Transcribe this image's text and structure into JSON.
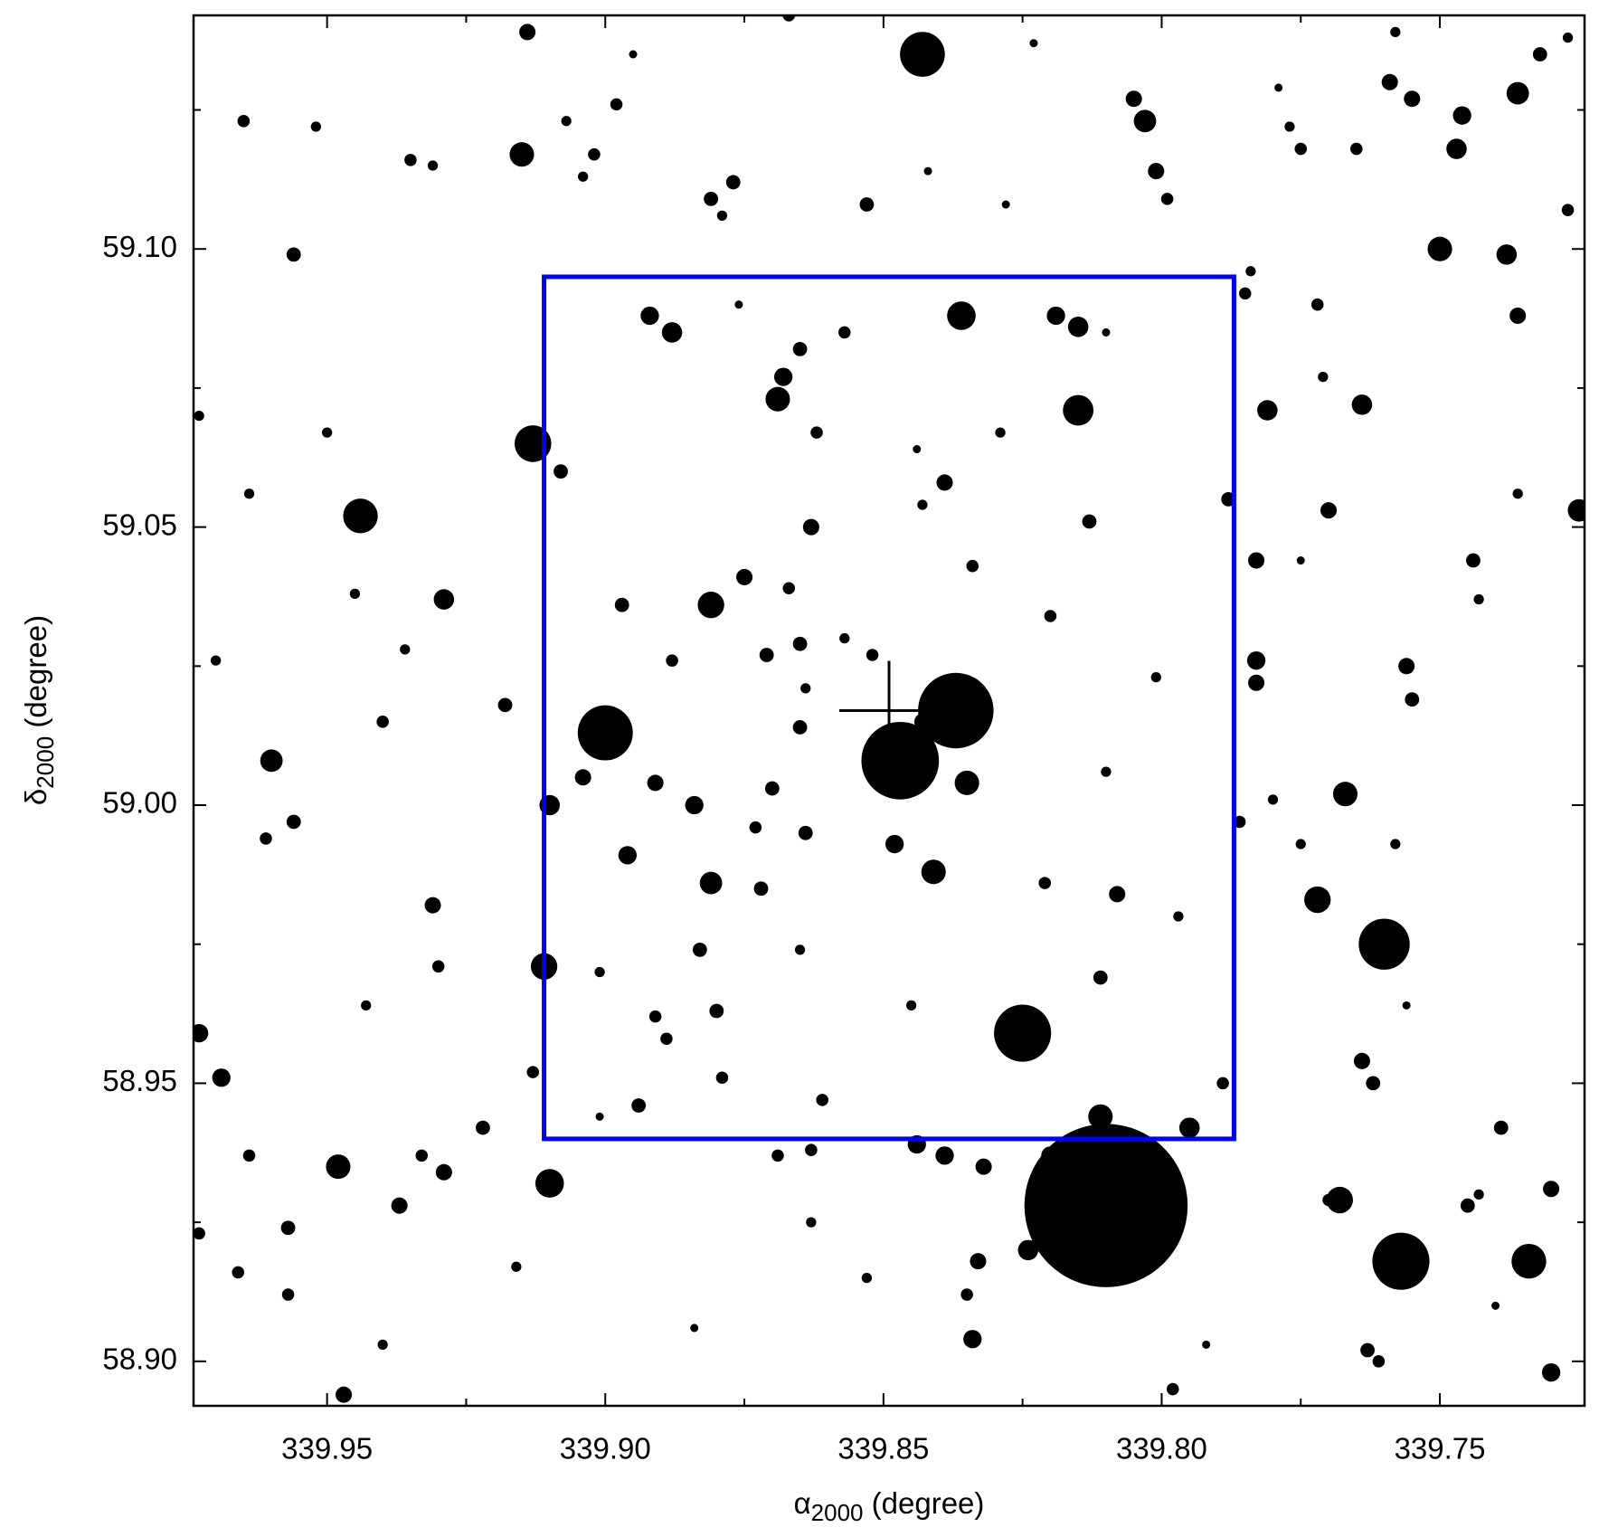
{
  "chart_data": {
    "type": "scatter",
    "xlabel": [
      "α",
      "2000",
      " (degree)"
    ],
    "ylabel": [
      "δ",
      "2000",
      " (degree)"
    ],
    "xlim": [
      339.974,
      339.724
    ],
    "ylim": [
      58.892,
      59.142
    ],
    "xticks": [
      339.95,
      {
        "value": 339.9,
        "label": "339.90"
      },
      339.85,
      {
        "value": 339.8,
        "label": "339.80"
      },
      339.75
    ],
    "yticks": [
      {
        "value": 58.9,
        "label": "58.90"
      },
      58.95,
      {
        "value": 59.0,
        "label": "59.00"
      },
      59.05,
      {
        "value": 59.1,
        "label": "59.10"
      }
    ],
    "xminorticks": [
      339.925,
      339.875,
      339.825,
      339.775
    ],
    "yminorticks": [
      58.925,
      58.975,
      59.025,
      59.075,
      59.125
    ],
    "series": [
      {
        "color": "#000000",
        "x": [
          339.843,
          339.914,
          339.867,
          339.965,
          339.952,
          339.915,
          339.935,
          339.931,
          339.907,
          339.902,
          339.904,
          339.898,
          339.877,
          339.881,
          339.879,
          339.853,
          339.842,
          339.805,
          339.803,
          339.801,
          339.799,
          339.828,
          339.777,
          339.775,
          339.765,
          339.759,
          339.755,
          339.746,
          339.747,
          339.736,
          339.732,
          339.727,
          339.75,
          339.738,
          339.736,
          339.725,
          339.764,
          339.77,
          339.744,
          339.756,
          339.755,
          339.767,
          339.772,
          339.76,
          339.783,
          339.783,
          339.786,
          339.781,
          339.783,
          339.784,
          339.785,
          339.772,
          339.788,
          339.815,
          339.819,
          339.815,
          339.813,
          339.829,
          339.836,
          339.857,
          339.865,
          339.868,
          339.869,
          339.862,
          339.892,
          339.888,
          339.913,
          339.908,
          339.95,
          339.964,
          339.944,
          339.956,
          339.973,
          339.897,
          339.881,
          339.875,
          339.863,
          339.839,
          339.834,
          339.867,
          339.82,
          339.929,
          339.94,
          339.918,
          339.9,
          339.888,
          339.871,
          339.865,
          339.852,
          339.865,
          339.837,
          339.847,
          339.843,
          339.835,
          339.96,
          339.91,
          339.904,
          339.891,
          339.884,
          339.87,
          339.864,
          339.848,
          339.896,
          339.956,
          339.961,
          339.931,
          339.881,
          339.872,
          339.841,
          339.808,
          339.811,
          339.825,
          339.883,
          339.88,
          339.891,
          339.889,
          339.879,
          339.911,
          339.93,
          339.973,
          339.969,
          339.913,
          339.894,
          339.861,
          339.863,
          339.869,
          339.844,
          339.839,
          339.832,
          339.811,
          339.795,
          339.81,
          339.824,
          339.82,
          339.789,
          339.764,
          339.762,
          339.739,
          339.745,
          339.73,
          339.734,
          339.757,
          339.768,
          339.77,
          339.763,
          339.761,
          339.73,
          339.798,
          339.833,
          339.835,
          339.834,
          339.863,
          339.91,
          339.922,
          339.929,
          339.933,
          339.937,
          339.948,
          339.957,
          339.966,
          339.957,
          339.94,
          339.947,
          339.973,
          339.964,
          339.895,
          339.823,
          339.779,
          339.758,
          339.727,
          339.771,
          339.81,
          339.876,
          339.844,
          339.843,
          339.97,
          339.857,
          339.864,
          339.81,
          339.873,
          339.821,
          339.797,
          339.845,
          339.865,
          339.901,
          339.943,
          339.901,
          339.756,
          339.743,
          339.74,
          339.792,
          339.853,
          339.884,
          339.916,
          339.736,
          339.743,
          339.758,
          339.775,
          339.78,
          339.775,
          339.801,
          339.945,
          339.936
        ],
        "values": [
          59.135,
          59.139,
          59.142,
          59.123,
          59.122,
          59.117,
          59.116,
          59.115,
          59.123,
          59.117,
          59.113,
          59.126,
          59.112,
          59.109,
          59.106,
          59.108,
          59.114,
          59.127,
          59.123,
          59.114,
          59.109,
          59.108,
          59.122,
          59.118,
          59.118,
          59.13,
          59.127,
          59.124,
          59.118,
          59.128,
          59.135,
          59.107,
          59.1,
          59.099,
          59.088,
          59.053,
          59.072,
          59.053,
          59.044,
          59.025,
          59.019,
          59.002,
          58.983,
          58.975,
          59.026,
          59.022,
          58.997,
          59.071,
          59.044,
          59.096,
          59.092,
          59.09,
          59.055,
          59.071,
          59.088,
          59.086,
          59.051,
          59.067,
          59.088,
          59.085,
          59.082,
          59.077,
          59.073,
          59.067,
          59.088,
          59.085,
          59.065,
          59.06,
          59.067,
          59.056,
          59.052,
          59.099,
          59.07,
          59.036,
          59.036,
          59.041,
          59.05,
          59.058,
          59.043,
          59.039,
          59.034,
          59.037,
          59.015,
          59.018,
          59.013,
          59.026,
          59.027,
          59.029,
          59.027,
          59.014,
          59.017,
          59.008,
          59.015,
          59.004,
          59.008,
          59.0,
          59.005,
          59.004,
          59.0,
          59.003,
          58.995,
          58.993,
          58.991,
          58.997,
          58.994,
          58.982,
          58.986,
          58.985,
          58.988,
          58.984,
          58.969,
          58.959,
          58.974,
          58.963,
          58.962,
          58.958,
          58.951,
          58.971,
          58.971,
          58.959,
          58.951,
          58.952,
          58.946,
          58.947,
          58.938,
          58.937,
          58.939,
          58.937,
          58.935,
          58.944,
          58.942,
          58.928,
          58.92,
          58.937,
          58.95,
          58.954,
          58.95,
          58.942,
          58.928,
          58.931,
          58.918,
          58.918,
          58.929,
          58.929,
          58.902,
          58.9,
          58.898,
          58.895,
          58.918,
          58.912,
          58.904,
          58.925,
          58.932,
          58.942,
          58.934,
          58.937,
          58.928,
          58.935,
          58.924,
          58.916,
          58.912,
          58.903,
          58.894,
          58.923,
          58.937,
          59.135,
          59.137,
          59.129,
          59.139,
          59.138,
          59.077,
          59.085,
          59.09,
          59.064,
          59.054,
          59.026,
          59.03,
          59.021,
          59.006,
          58.996,
          58.986,
          58.98,
          58.964,
          58.974,
          58.97,
          58.964,
          58.944,
          58.964,
          58.93,
          58.91,
          58.903,
          58.915,
          58.906,
          58.917,
          59.056,
          59.037,
          58.993,
          58.993,
          59.001,
          59.044,
          59.023,
          59.038,
          59.028
        ],
        "sizes": [
          22,
          8,
          6,
          6,
          5,
          12,
          6,
          5,
          5,
          6,
          5,
          6,
          7,
          7,
          5,
          7,
          4,
          8,
          11,
          8,
          6,
          4,
          5,
          6,
          6,
          8,
          8,
          9,
          10,
          11,
          7,
          6,
          12,
          10,
          8,
          11,
          10,
          8,
          7,
          8,
          7,
          12,
          13,
          25,
          9,
          8,
          6,
          10,
          8,
          5,
          6,
          6,
          7,
          15,
          9,
          10,
          7,
          5,
          14,
          6,
          7,
          9,
          12,
          6,
          9,
          10,
          18,
          7,
          5,
          5,
          17,
          7,
          5,
          7,
          13,
          8,
          8,
          8,
          6,
          6,
          6,
          10,
          6,
          7,
          27,
          6,
          7,
          7,
          6,
          7,
          37,
          38,
          8,
          12,
          11,
          10,
          8,
          8,
          9,
          7,
          7,
          9,
          9,
          7,
          6,
          8,
          11,
          7,
          12,
          8,
          7,
          28,
          7,
          7,
          6,
          6,
          6,
          13,
          6,
          9,
          9,
          6,
          7,
          6,
          6,
          6,
          9,
          9,
          8,
          12,
          10,
          80,
          10,
          9,
          6,
          8,
          7,
          7,
          7,
          8,
          17,
          28,
          13,
          6,
          7,
          6,
          9,
          6,
          8,
          6,
          9,
          5,
          14,
          7,
          8,
          6,
          8,
          12,
          7,
          6,
          6,
          5,
          8,
          6,
          6,
          4,
          4,
          4,
          5,
          5,
          5,
          4,
          4,
          4,
          5,
          5,
          5,
          5,
          5,
          6,
          6,
          5,
          5,
          5,
          5,
          5,
          4,
          4,
          5,
          4,
          4,
          5,
          4,
          5,
          5,
          5,
          5,
          5,
          5,
          4,
          5,
          5,
          5
        ]
      }
    ],
    "regions": [
      {
        "xlim": [
          339.911,
          339.787
        ],
        "ylim": [
          58.94,
          59.095
        ],
        "color": "#0000ff"
      }
    ],
    "marker": {
      "x": 339.849,
      "y": 59.017,
      "color": "#000000"
    }
  }
}
